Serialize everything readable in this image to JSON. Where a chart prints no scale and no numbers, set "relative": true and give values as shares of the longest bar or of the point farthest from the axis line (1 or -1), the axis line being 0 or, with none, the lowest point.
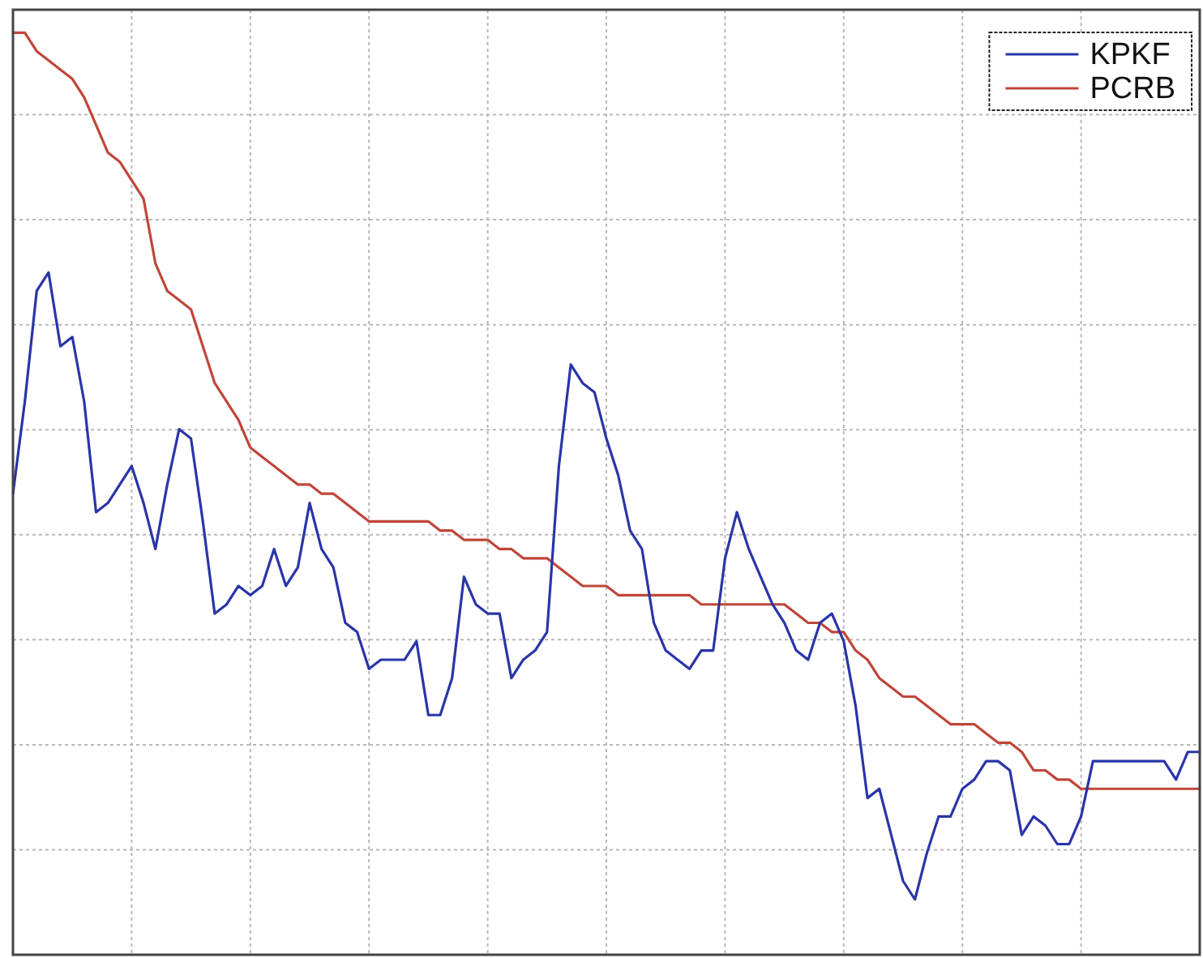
{
  "chart_data": {
    "type": "line",
    "relative": true,
    "grid": true,
    "legend": "top right",
    "categories": [
      null,
      null,
      null,
      null,
      null,
      null,
      null,
      null,
      null,
      null,
      null,
      null,
      null,
      null,
      null,
      null,
      null,
      null,
      null,
      null,
      null,
      null,
      null,
      null,
      null,
      null,
      null,
      null,
      null,
      null,
      null,
      null,
      null,
      null,
      null,
      null,
      null,
      null,
      null,
      null,
      null,
      null,
      null,
      null,
      null,
      null,
      null,
      null,
      null,
      null,
      null,
      null,
      null,
      null,
      null,
      null,
      null,
      null,
      null,
      null,
      null,
      null,
      null,
      null,
      null,
      null,
      null,
      null,
      null,
      null,
      null,
      null,
      null,
      null,
      null,
      null,
      null,
      null,
      null,
      null,
      null,
      null,
      null,
      null,
      null,
      null,
      null,
      null,
      null,
      null,
      null,
      null,
      null,
      null,
      null,
      null,
      null,
      null,
      null,
      null,
      null
    ],
    "series": [
      {
        "name": "KPKF",
        "color": "#2a35a8",
        "values": [
          0.5,
          0.6,
          0.72,
          0.74,
          0.66,
          0.67,
          0.6,
          0.48,
          0.49,
          0.51,
          0.53,
          0.49,
          0.44,
          0.51,
          0.57,
          0.56,
          0.47,
          0.37,
          0.38,
          0.4,
          0.39,
          0.4,
          0.44,
          0.4,
          0.42,
          0.49,
          0.44,
          0.42,
          0.36,
          0.35,
          0.31,
          0.32,
          0.32,
          0.32,
          0.34,
          0.26,
          0.26,
          0.3,
          0.41,
          0.38,
          0.37,
          0.37,
          0.3,
          0.32,
          0.33,
          0.35,
          0.53,
          0.64,
          0.62,
          0.61,
          0.56,
          0.52,
          0.46,
          0.44,
          0.36,
          0.33,
          0.32,
          0.31,
          0.33,
          0.33,
          0.43,
          0.48,
          0.44,
          0.41,
          0.38,
          0.36,
          0.33,
          0.32,
          0.36,
          0.37,
          0.34,
          0.27,
          0.17,
          0.18,
          0.13,
          0.08,
          0.06,
          0.11,
          0.15,
          0.15,
          0.18,
          0.19,
          0.21,
          0.21,
          0.2,
          0.13,
          0.15,
          0.14,
          0.12,
          0.12,
          0.15,
          0.21,
          0.21,
          0.21,
          0.21,
          0.21,
          0.21,
          0.21,
          0.19,
          0.22,
          0.22
        ]
      },
      {
        "name": "PCRB",
        "color": "#c0463a",
        "values": [
          1.0,
          1.0,
          0.98,
          0.97,
          0.96,
          0.95,
          0.93,
          0.9,
          0.87,
          0.86,
          0.84,
          0.82,
          0.75,
          0.72,
          0.71,
          0.7,
          0.66,
          0.62,
          0.6,
          0.58,
          0.55,
          0.54,
          0.53,
          0.52,
          0.51,
          0.51,
          0.5,
          0.5,
          0.49,
          0.48,
          0.47,
          0.47,
          0.47,
          0.47,
          0.47,
          0.47,
          0.46,
          0.46,
          0.45,
          0.45,
          0.45,
          0.44,
          0.44,
          0.43,
          0.43,
          0.43,
          0.42,
          0.41,
          0.4,
          0.4,
          0.4,
          0.39,
          0.39,
          0.39,
          0.39,
          0.39,
          0.39,
          0.39,
          0.38,
          0.38,
          0.38,
          0.38,
          0.38,
          0.38,
          0.38,
          0.38,
          0.37,
          0.36,
          0.36,
          0.35,
          0.35,
          0.33,
          0.32,
          0.3,
          0.29,
          0.28,
          0.28,
          0.27,
          0.26,
          0.25,
          0.25,
          0.25,
          0.24,
          0.23,
          0.23,
          0.22,
          0.2,
          0.2,
          0.19,
          0.19,
          0.18,
          0.18,
          0.18,
          0.18,
          0.18,
          0.18,
          0.18,
          0.18,
          0.18,
          0.18,
          0.18
        ]
      }
    ]
  }
}
